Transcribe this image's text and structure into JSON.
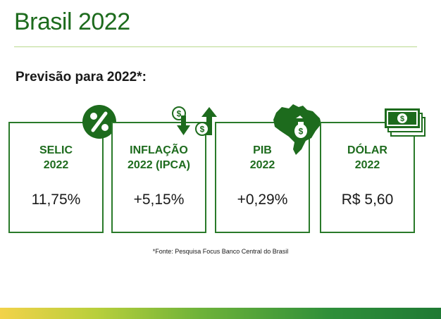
{
  "title": "Brasil 2022",
  "subtitle": "Previsão para 2022*:",
  "cards": [
    {
      "label": "SELIC\n2022",
      "value": "11,75%",
      "icon": "percent-icon"
    },
    {
      "label": "INFLAÇÃO\n2022 (IPCA)",
      "value": "+5,15%",
      "icon": "inflation-arrows-icon"
    },
    {
      "label": "PIB\n2022",
      "value": "+0,29%",
      "icon": "brazil-map-icon"
    },
    {
      "label": "DÓLAR\n2022",
      "value": "R$ 5,60",
      "icon": "banknotes-icon"
    }
  ],
  "source": "*Fonte: Pesquisa Focus Banco Central do Brasil",
  "colors": {
    "primary": "#1d6b1d",
    "rule": "#b9d98d"
  }
}
